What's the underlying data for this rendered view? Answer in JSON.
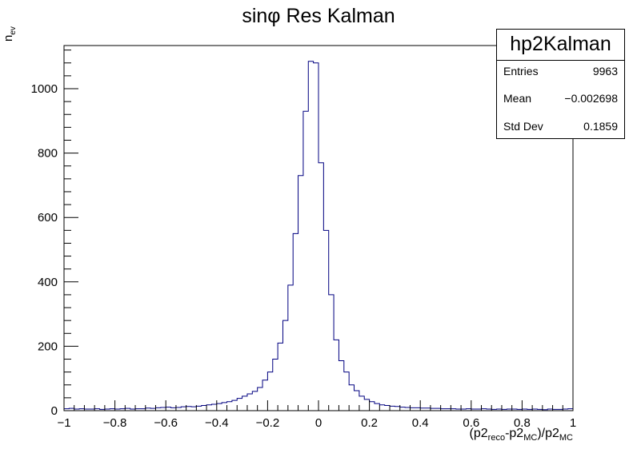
{
  "chart_data": {
    "type": "histogram",
    "title": "sinφ Res Kalman",
    "xlabel": "(p2reco-p2MC)/p2MC",
    "ylabel": "nev",
    "xlim": [
      -1,
      1
    ],
    "ylim": [
      0,
      1134
    ],
    "x_ticks": [
      -1,
      -0.8,
      -0.6,
      -0.4,
      -0.2,
      0,
      0.2,
      0.4,
      0.6,
      0.8,
      1
    ],
    "x_tick_labels": [
      "−1",
      "−0.8",
      "−0.6",
      "−0.4",
      "−0.2",
      "0",
      "0.2",
      "0.4",
      "0.6",
      "0.8",
      "1"
    ],
    "y_ticks": [
      0,
      200,
      400,
      600,
      800,
      1000
    ],
    "y_tick_labels": [
      "0",
      "200",
      "400",
      "600",
      "800",
      "1000"
    ],
    "bin_edges_start": -1,
    "bin_width": 0.02,
    "bin_values": [
      6,
      7,
      5,
      6,
      5,
      5,
      6,
      4,
      5,
      6,
      5,
      6,
      7,
      5,
      6,
      6,
      8,
      7,
      9,
      10,
      11,
      9,
      10,
      12,
      13,
      12,
      14,
      16,
      18,
      20,
      22,
      25,
      28,
      32,
      38,
      45,
      52,
      60,
      72,
      95,
      120,
      160,
      210,
      280,
      390,
      550,
      730,
      930,
      1085,
      1080,
      770,
      560,
      360,
      220,
      155,
      120,
      80,
      62,
      45,
      35,
      28,
      22,
      18,
      16,
      14,
      13,
      11,
      10,
      9,
      9,
      8,
      8,
      7,
      7,
      6,
      6,
      6,
      5,
      5,
      6,
      5,
      5,
      6,
      5,
      4,
      5,
      4,
      5,
      5,
      4,
      5,
      4,
      5,
      4,
      3,
      5,
      4,
      4,
      5,
      6
    ],
    "line_color": "#000080",
    "grid": false,
    "legend": "top-right"
  },
  "stats_box": {
    "name": "hp2Kalman",
    "entries_label": "Entries",
    "entries_value": "9963",
    "mean_label": "Mean",
    "mean_value": "−0.002698",
    "std_label": "Std Dev",
    "std_value": "0.1859"
  }
}
